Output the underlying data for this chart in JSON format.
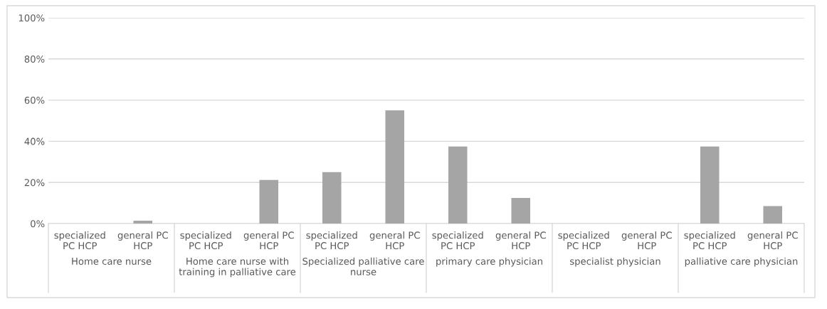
{
  "chart_data": {
    "type": "bar",
    "categories": [
      "specialized\nPC HCP",
      "general PC\nHCP",
      "specialized\nPC HCP",
      "general PC\nHCP",
      "specialized\nPC HCP",
      "general PC\nHCP",
      "specialized\nPC HCP",
      "general PC\nHCP",
      "specialized\nPC HCP",
      "general PC\nHCP",
      "specialized\nPC HCP",
      "general PC\nHCP"
    ],
    "values": [
      0,
      1.4,
      0,
      21.2,
      25,
      55,
      37.5,
      12.5,
      0,
      0,
      37.5,
      8.5
    ],
    "color": "#a5a5a5",
    "ylim": [
      0,
      100
    ],
    "yticks": [
      {
        "value": 0,
        "label": "0%"
      },
      {
        "value": 20,
        "label": "20%"
      },
      {
        "value": 40,
        "label": "40%"
      },
      {
        "value": 60,
        "label": "60%"
      },
      {
        "value": 80,
        "label": "80%"
      },
      {
        "value": 100,
        "label": "100%"
      }
    ],
    "grid": "y",
    "annotations": [
      "Home care nurse",
      "Home care nurse with\ntraining in palliative care",
      "Specialized palliative care\nnurse",
      "primary care physician",
      "specialist physician",
      "palliative care physician"
    ]
  }
}
